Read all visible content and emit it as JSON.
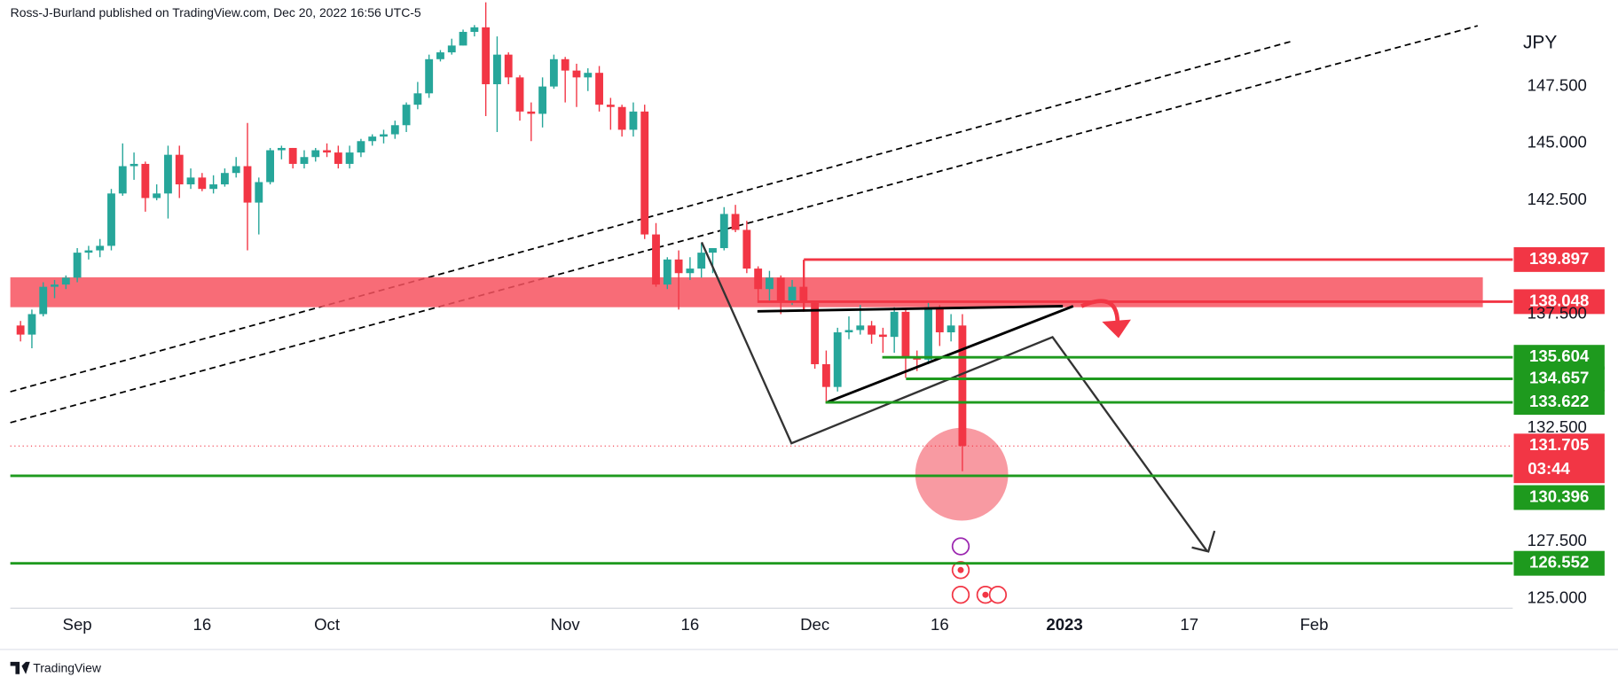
{
  "chart_data": {
    "type": "candlestick",
    "attribution": "Ross-J-Burland published on TradingView.com, Dec 20, 2022 16:56 UTC-5",
    "currency": "JPY",
    "brand": "TradingView",
    "up_color": "#26a69a",
    "down_color": "#f23645",
    "open": [
      137.0,
      136.6,
      137.5,
      138.7,
      138.8,
      139.1,
      140.2,
      140.3,
      140.5,
      142.8,
      144.0,
      144.1,
      142.6,
      142.8,
      144.5,
      143.2,
      143.5,
      143.0,
      143.2,
      143.7,
      144.0,
      142.4,
      143.3,
      144.7,
      144.8,
      144.1,
      144.4,
      144.7,
      144.6,
      144.1,
      144.6,
      145.1,
      145.3,
      145.4,
      145.8,
      146.7,
      147.2,
      148.7,
      149.0,
      149.3,
      149.9,
      150.1,
      147.6,
      148.9,
      147.9,
      146.4,
      146.3,
      147.5,
      148.7,
      148.2,
      147.9,
      148.1,
      146.7,
      146.6,
      145.6,
      146.4,
      141.0,
      138.8,
      139.9,
      139.3,
      139.5,
      140.2,
      140.4,
      141.9,
      141.2,
      139.5,
      138.6,
      139.1,
      138.1,
      138.7,
      138.0,
      135.3,
      134.3,
      136.7,
      136.8,
      137.0,
      136.6,
      136.5,
      137.6,
      135.6,
      135.5,
      137.8,
      136.7,
      137.0
    ],
    "high": [
      137.2,
      137.7,
      138.9,
      139.0,
      139.2,
      140.4,
      140.5,
      140.8,
      143.0,
      145.0,
      144.6,
      144.2,
      143.2,
      144.9,
      144.9,
      143.9,
      143.7,
      143.6,
      143.9,
      144.4,
      145.9,
      143.5,
      144.8,
      144.9,
      144.8,
      144.7,
      144.8,
      145.0,
      144.9,
      144.9,
      145.2,
      145.4,
      145.6,
      146.0,
      146.8,
      147.7,
      148.9,
      149.1,
      149.6,
      150.0,
      150.2,
      151.2,
      149.7,
      149.0,
      148.0,
      146.8,
      147.9,
      148.9,
      148.8,
      148.5,
      148.3,
      148.4,
      147.0,
      146.7,
      146.8,
      146.7,
      141.5,
      140.0,
      140.3,
      140.0,
      140.6,
      140.4,
      142.2,
      142.3,
      141.6,
      139.6,
      139.4,
      139.2,
      139.0,
      139.0,
      138.1,
      135.9,
      136.9,
      137.4,
      137.9,
      137.2,
      136.9,
      137.8,
      137.7,
      135.9,
      138.0,
      137.9,
      137.5,
      137.5
    ],
    "low": [
      136.3,
      136.0,
      137.4,
      138.2,
      138.6,
      138.9,
      139.9,
      140.0,
      140.3,
      142.7,
      143.4,
      142.0,
      142.5,
      141.7,
      142.6,
      143.0,
      142.9,
      142.8,
      143.1,
      143.5,
      140.3,
      141.0,
      143.2,
      144.3,
      143.9,
      143.9,
      144.2,
      144.4,
      143.9,
      143.9,
      144.4,
      144.9,
      145.0,
      145.2,
      145.5,
      146.5,
      147.0,
      148.6,
      148.9,
      149.3,
      149.7,
      146.2,
      145.5,
      147.6,
      146.0,
      145.1,
      145.7,
      147.4,
      146.8,
      146.6,
      147.3,
      146.4,
      145.6,
      145.3,
      145.3,
      140.8,
      138.7,
      138.6,
      137.7,
      139.0,
      139.1,
      139.3,
      140.3,
      141.1,
      139.3,
      138.1,
      138.0,
      137.5,
      137.9,
      137.6,
      135.1,
      133.6,
      134.1,
      136.4,
      136.6,
      136.2,
      135.8,
      135.8,
      134.7,
      135.0,
      135.3,
      136.1,
      136.3,
      130.6
    ],
    "close": [
      136.6,
      137.5,
      138.7,
      138.8,
      139.1,
      140.2,
      140.3,
      140.5,
      142.8,
      144.0,
      144.1,
      142.6,
      142.8,
      144.5,
      143.2,
      143.5,
      143.0,
      143.2,
      143.7,
      144.0,
      142.4,
      143.3,
      144.7,
      144.8,
      144.1,
      144.4,
      144.7,
      144.6,
      144.1,
      144.6,
      145.1,
      145.3,
      145.4,
      145.8,
      146.7,
      147.2,
      148.7,
      149.0,
      149.3,
      149.9,
      150.1,
      147.6,
      148.9,
      147.9,
      146.4,
      146.3,
      147.5,
      148.7,
      148.2,
      147.9,
      148.1,
      146.7,
      146.6,
      145.6,
      146.4,
      141.0,
      138.8,
      139.9,
      139.3,
      139.5,
      140.2,
      140.4,
      141.9,
      141.2,
      139.5,
      138.6,
      139.1,
      138.1,
      138.7,
      138.0,
      135.3,
      134.3,
      136.7,
      136.8,
      137.0,
      136.6,
      136.5,
      137.6,
      135.6,
      135.5,
      137.8,
      136.7,
      137.0,
      131.705
    ],
    "xlim": [
      -0.9,
      131.5
    ],
    "xticks": [
      {
        "value": 5,
        "label": "Sep"
      },
      16,
      {
        "value": 27,
        "label": "Oct"
      },
      {
        "value": 48,
        "label": "Nov"
      },
      {
        "value": 59,
        "label": "16"
      },
      {
        "value": 70,
        "label": "Dec"
      },
      {
        "value": 81,
        "label": "16"
      },
      {
        "value": 92,
        "label": "2023"
      },
      {
        "value": 103,
        "label": "17"
      },
      {
        "value": 114,
        "label": "Feb"
      }
    ],
    "ylim": [
      124.58,
      151.3
    ],
    "yticks": [
      {
        "value": 147.5,
        "label": "147.500"
      },
      {
        "value": 145,
        "label": "145.000"
      },
      {
        "value": 142.5,
        "label": "142.500"
      },
      {
        "value": 137.5,
        "label": "137.500"
      },
      {
        "value": 132.5,
        "label": "132.500"
      },
      {
        "value": 127.5,
        "label": "127.500"
      },
      {
        "value": 125,
        "label": "125.000"
      }
    ],
    "grid": false,
    "levels": [
      {
        "value": 139.897,
        "color": "#f23645"
      },
      {
        "value": 138.048,
        "color": "#f23645"
      },
      {
        "value": 135.604,
        "color": "#1e9a1e"
      },
      {
        "value": 134.657,
        "color": "#1e9a1e"
      },
      {
        "value": 133.622,
        "color": "#1e9a1e"
      },
      {
        "value": 130.396,
        "color": "#1e9a1e"
      },
      {
        "value": 126.552,
        "color": "#1e9a1e"
      }
    ],
    "last_price": 131.705,
    "countdown": "03:44"
  }
}
